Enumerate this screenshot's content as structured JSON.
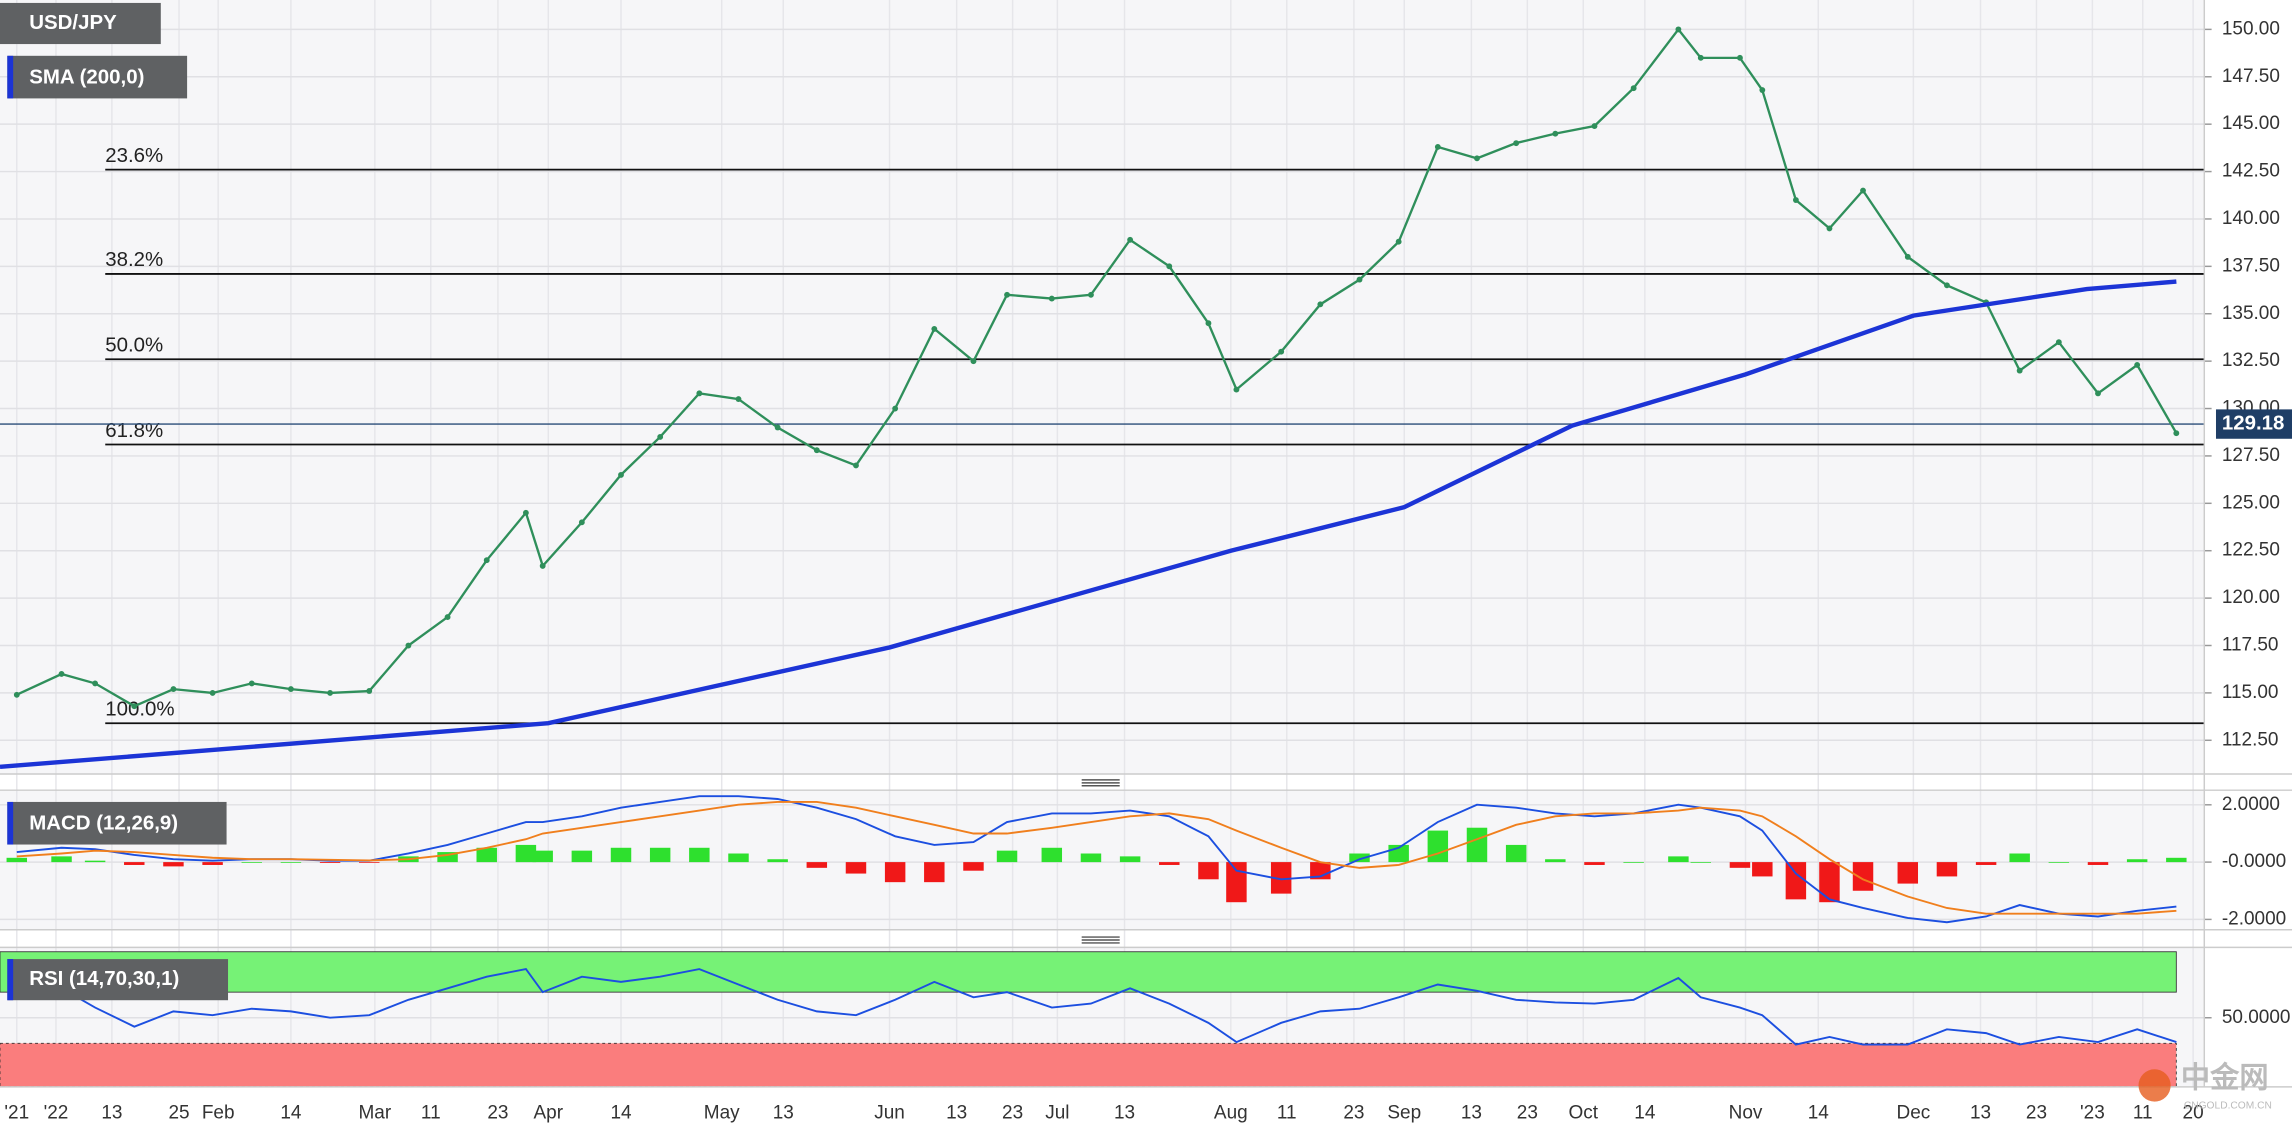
{
  "chart_data": [
    {
      "type": "line",
      "title": "USD/JPY",
      "x": [
        "2021-12-27",
        "2022-01-04",
        "2022-01-10",
        "2022-01-17",
        "2022-01-24",
        "2022-01-31",
        "2022-02-07",
        "2022-02-14",
        "2022-02-21",
        "2022-02-28",
        "2022-03-07",
        "2022-03-14",
        "2022-03-21",
        "2022-03-28",
        "2022-03-31",
        "2022-04-07",
        "2022-04-14",
        "2022-04-21",
        "2022-04-28",
        "2022-05-05",
        "2022-05-12",
        "2022-05-19",
        "2022-05-26",
        "2022-06-02",
        "2022-06-09",
        "2022-06-16",
        "2022-06-22",
        "2022-06-30",
        "2022-07-07",
        "2022-07-14",
        "2022-07-21",
        "2022-07-28",
        "2022-08-02",
        "2022-08-10",
        "2022-08-17",
        "2022-08-24",
        "2022-08-31",
        "2022-09-07",
        "2022-09-14",
        "2022-09-21",
        "2022-09-28",
        "2022-10-05",
        "2022-10-12",
        "2022-10-20",
        "2022-10-24",
        "2022-10-31",
        "2022-11-04",
        "2022-11-10",
        "2022-11-16",
        "2022-11-22",
        "2022-11-30",
        "2022-12-07",
        "2022-12-14",
        "2022-12-20",
        "2022-12-27",
        "2023-01-03",
        "2023-01-10",
        "2023-01-17"
      ],
      "values": [
        114.9,
        116.0,
        115.5,
        114.3,
        115.2,
        115.0,
        115.5,
        115.2,
        115.0,
        115.1,
        117.5,
        119.0,
        122.0,
        124.5,
        121.7,
        124.0,
        126.5,
        128.5,
        130.8,
        130.5,
        129.0,
        127.8,
        127.0,
        130.0,
        134.2,
        132.5,
        136.0,
        135.8,
        136.0,
        138.9,
        137.5,
        134.5,
        131.0,
        133.0,
        135.5,
        136.8,
        138.8,
        143.8,
        143.2,
        144.0,
        144.5,
        144.9,
        146.9,
        150.0,
        148.5,
        148.5,
        146.8,
        141.0,
        139.5,
        141.5,
        138.0,
        136.5,
        135.6,
        132.0,
        133.5,
        130.8,
        132.3,
        128.7
      ],
      "color": "#2f8f5b",
      "series": [
        {
          "name": "SMA (200,0)",
          "color": "#1c34d6",
          "x": [
            "2021-12-24",
            "2022-04-01",
            "2022-06-01",
            "2022-08-01",
            "2022-09-01",
            "2022-10-01",
            "2022-11-01",
            "2022-12-01",
            "2023-01-01",
            "2023-01-17"
          ],
          "values": [
            111.1,
            113.4,
            117.4,
            122.5,
            124.8,
            129.1,
            131.8,
            134.9,
            136.3,
            136.7
          ]
        }
      ],
      "levels": [
        {
          "label": "23.6%",
          "value": 142.6
        },
        {
          "label": "38.2%",
          "value": 137.1
        },
        {
          "label": "50.0%",
          "value": 132.6
        },
        {
          "label": "61.8%",
          "value": 128.1
        },
        {
          "label": "100.0%",
          "value": 113.4
        }
      ],
      "last_price": 129.18,
      "xlim": [
        "2021-12-24",
        "2023-01-22"
      ],
      "xticks": [
        {
          "value": "2021-12-27",
          "label": "'21"
        },
        {
          "value": "2022-01-03",
          "label": "'22"
        },
        {
          "value": "2022-01-13",
          "label": "13"
        },
        {
          "value": "2022-01-25",
          "label": "25"
        },
        {
          "value": "2022-02-01",
          "label": "Feb"
        },
        {
          "value": "2022-02-14",
          "label": "14"
        },
        {
          "value": "2022-03-01",
          "label": "Mar"
        },
        {
          "value": "2022-03-11",
          "label": "11"
        },
        {
          "value": "2022-03-23",
          "label": "23"
        },
        {
          "value": "2022-04-01",
          "label": "Apr"
        },
        {
          "value": "2022-04-14",
          "label": "14"
        },
        {
          "value": "2022-05-02",
          "label": "May"
        },
        {
          "value": "2022-05-13",
          "label": "13"
        },
        {
          "value": "2022-06-01",
          "label": "Jun"
        },
        {
          "value": "2022-06-13",
          "label": "13"
        },
        {
          "value": "2022-06-23",
          "label": "23"
        },
        {
          "value": "2022-07-01",
          "label": "Jul"
        },
        {
          "value": "2022-07-13",
          "label": "13"
        },
        {
          "value": "2022-08-01",
          "label": "Aug"
        },
        {
          "value": "2022-08-11",
          "label": "11"
        },
        {
          "value": "2022-08-23",
          "label": "23"
        },
        {
          "value": "2022-09-01",
          "label": "Sep"
        },
        {
          "value": "2022-09-13",
          "label": "13"
        },
        {
          "value": "2022-09-23",
          "label": "23"
        },
        {
          "value": "2022-10-03",
          "label": "Oct"
        },
        {
          "value": "2022-10-14",
          "label": "14"
        },
        {
          "value": "2022-11-01",
          "label": "Nov"
        },
        {
          "value": "2022-11-14",
          "label": "14"
        },
        {
          "value": "2022-12-01",
          "label": "Dec"
        },
        {
          "value": "2022-12-13",
          "label": "13"
        },
        {
          "value": "2022-12-23",
          "label": "23"
        },
        {
          "value": "2023-01-02",
          "label": "'23"
        },
        {
          "value": "2023-01-11",
          "label": "11"
        },
        {
          "value": "2023-01-20",
          "label": "20"
        }
      ],
      "ylim": [
        110.72,
        151.55
      ],
      "yticks": [
        {
          "value": 112.5,
          "label": "112.50"
        },
        {
          "value": 115,
          "label": "115.00"
        },
        {
          "value": 117.5,
          "label": "117.50"
        },
        {
          "value": 120,
          "label": "120.00"
        },
        {
          "value": 122.5,
          "label": "122.50"
        },
        {
          "value": 125,
          "label": "125.00"
        },
        {
          "value": 127.5,
          "label": "127.50"
        },
        {
          "value": 130,
          "label": "130.00"
        },
        {
          "value": 132.5,
          "label": "132.50"
        },
        {
          "value": 135,
          "label": "135.00"
        },
        {
          "value": 137.5,
          "label": "137.50"
        },
        {
          "value": 140,
          "label": "140.00"
        },
        {
          "value": 142.5,
          "label": "142.50"
        },
        {
          "value": 145,
          "label": "145.00"
        },
        {
          "value": 147.5,
          "label": "147.50"
        },
        {
          "value": 150,
          "label": "150.00"
        }
      ],
      "grid": true
    },
    {
      "type": "macd",
      "title": "MACD (12,26,9)",
      "x": [
        "2021-12-27",
        "2022-01-04",
        "2022-01-10",
        "2022-01-17",
        "2022-01-24",
        "2022-01-31",
        "2022-02-07",
        "2022-02-14",
        "2022-02-21",
        "2022-02-28",
        "2022-03-07",
        "2022-03-14",
        "2022-03-21",
        "2022-03-28",
        "2022-03-31",
        "2022-04-07",
        "2022-04-14",
        "2022-04-21",
        "2022-04-28",
        "2022-05-05",
        "2022-05-12",
        "2022-05-19",
        "2022-05-26",
        "2022-06-02",
        "2022-06-09",
        "2022-06-16",
        "2022-06-22",
        "2022-06-30",
        "2022-07-07",
        "2022-07-14",
        "2022-07-21",
        "2022-07-28",
        "2022-08-02",
        "2022-08-10",
        "2022-08-17",
        "2022-08-24",
        "2022-08-31",
        "2022-09-07",
        "2022-09-14",
        "2022-09-21",
        "2022-09-28",
        "2022-10-05",
        "2022-10-12",
        "2022-10-20",
        "2022-10-24",
        "2022-10-31",
        "2022-11-04",
        "2022-11-10",
        "2022-11-16",
        "2022-11-22",
        "2022-11-30",
        "2022-12-07",
        "2022-12-14",
        "2022-12-20",
        "2022-12-27",
        "2023-01-03",
        "2023-01-10",
        "2023-01-17"
      ],
      "series": [
        {
          "color": "#1c4fe0",
          "values": [
            0.35,
            0.5,
            0.45,
            0.25,
            0.1,
            0.05,
            0.1,
            0.1,
            0.05,
            0.05,
            0.3,
            0.6,
            1.0,
            1.4,
            1.4,
            1.6,
            1.9,
            2.1,
            2.3,
            2.3,
            2.2,
            1.9,
            1.5,
            0.9,
            0.6,
            0.7,
            1.4,
            1.7,
            1.7,
            1.8,
            1.6,
            0.9,
            -0.3,
            -0.6,
            -0.5,
            0.1,
            0.5,
            1.4,
            2.0,
            1.9,
            1.7,
            1.6,
            1.7,
            2.0,
            1.9,
            1.6,
            1.1,
            -0.4,
            -1.3,
            -1.6,
            -1.95,
            -2.1,
            -1.9,
            -1.5,
            -1.8,
            -1.9,
            -1.7,
            -1.55
          ]
        },
        {
          "color": "#f07f1d",
          "values": [
            0.2,
            0.3,
            0.4,
            0.35,
            0.25,
            0.15,
            0.1,
            0.1,
            0.08,
            0.06,
            0.1,
            0.25,
            0.5,
            0.8,
            1.0,
            1.2,
            1.4,
            1.6,
            1.8,
            2.0,
            2.1,
            2.1,
            1.9,
            1.6,
            1.3,
            1.0,
            1.0,
            1.2,
            1.4,
            1.6,
            1.7,
            1.5,
            1.1,
            0.5,
            0.0,
            -0.2,
            -0.1,
            0.3,
            0.8,
            1.3,
            1.6,
            1.7,
            1.7,
            1.8,
            1.9,
            1.8,
            1.6,
            0.9,
            0.1,
            -0.6,
            -1.2,
            -1.6,
            -1.8,
            -1.8,
            -1.8,
            -1.8,
            -1.8,
            -1.7
          ]
        }
      ],
      "histogram": {
        "colors": [
          "#2ee02e",
          "#f01818"
        ],
        "values": [
          0.15,
          0.2,
          0.05,
          -0.1,
          -0.15,
          -0.1,
          0,
          0,
          -0.03,
          -0.01,
          0.2,
          0.35,
          0.5,
          0.6,
          0.4,
          0.4,
          0.5,
          0.5,
          0.5,
          0.3,
          0.1,
          -0.2,
          -0.4,
          -0.7,
          -0.7,
          -0.3,
          0.4,
          0.5,
          0.3,
          0.2,
          -0.1,
          -0.6,
          -1.4,
          -1.1,
          -0.6,
          0.3,
          0.6,
          1.1,
          1.2,
          0.6,
          0.1,
          -0.1,
          0,
          0.2,
          0,
          -0.2,
          -0.5,
          -1.3,
          -1.4,
          -1.0,
          -0.75,
          -0.5,
          -0.1,
          0.3,
          0,
          -0.1,
          0.1,
          0.15
        ]
      },
      "ylim": [
        -2.36,
        2.51
      ],
      "yticks": [
        {
          "value": 2,
          "label": "2.0000"
        },
        {
          "value": 0,
          "label": "-0.0000"
        },
        {
          "value": -2,
          "label": "-2.0000"
        }
      ],
      "grid": true
    },
    {
      "type": "rsi",
      "title": "RSI (14,70,30,1)",
      "x": [
        "2021-12-27",
        "2022-01-04",
        "2022-01-10",
        "2022-01-17",
        "2022-01-24",
        "2022-01-31",
        "2022-02-07",
        "2022-02-14",
        "2022-02-21",
        "2022-02-28",
        "2022-03-07",
        "2022-03-14",
        "2022-03-21",
        "2022-03-28",
        "2022-03-31",
        "2022-04-07",
        "2022-04-14",
        "2022-04-21",
        "2022-04-28",
        "2022-05-05",
        "2022-05-12",
        "2022-05-19",
        "2022-05-26",
        "2022-06-02",
        "2022-06-09",
        "2022-06-16",
        "2022-06-22",
        "2022-06-30",
        "2022-07-07",
        "2022-07-14",
        "2022-07-21",
        "2022-07-28",
        "2022-08-02",
        "2022-08-10",
        "2022-08-17",
        "2022-08-24",
        "2022-08-31",
        "2022-09-07",
        "2022-09-14",
        "2022-09-21",
        "2022-09-28",
        "2022-10-05",
        "2022-10-12",
        "2022-10-20",
        "2022-10-24",
        "2022-10-31",
        "2022-11-04",
        "2022-11-10",
        "2022-11-16",
        "2022-11-22",
        "2022-11-30",
        "2022-12-07",
        "2022-12-14",
        "2022-12-20",
        "2022-12-27",
        "2023-01-03",
        "2023-01-10",
        "2023-01-17"
      ],
      "values": [
        76,
        73,
        58,
        43,
        55,
        52,
        57,
        55,
        50,
        52,
        64,
        73,
        82,
        88,
        70,
        82,
        78,
        82,
        88,
        76,
        64,
        55,
        52,
        64,
        78,
        66,
        70,
        58,
        61,
        73,
        61,
        46,
        31,
        46,
        55,
        57,
        66,
        76,
        71,
        64,
        62,
        61,
        64,
        81,
        66,
        58,
        52,
        29,
        35,
        29,
        29,
        41,
        38,
        29,
        35,
        31,
        41,
        31
      ],
      "color": "#1c4fe0",
      "overbought": 70,
      "oversold": 30,
      "zone_colors": [
        "#76f276",
        "#fa7d7d"
      ],
      "ylim": [
        -4,
        105
      ],
      "yticks": [
        {
          "value": 50,
          "label": "50.0000"
        }
      ],
      "grid": true
    }
  ],
  "watermark": {
    "name": "中金网",
    "url": "CNGOLD.COM.CN"
  }
}
